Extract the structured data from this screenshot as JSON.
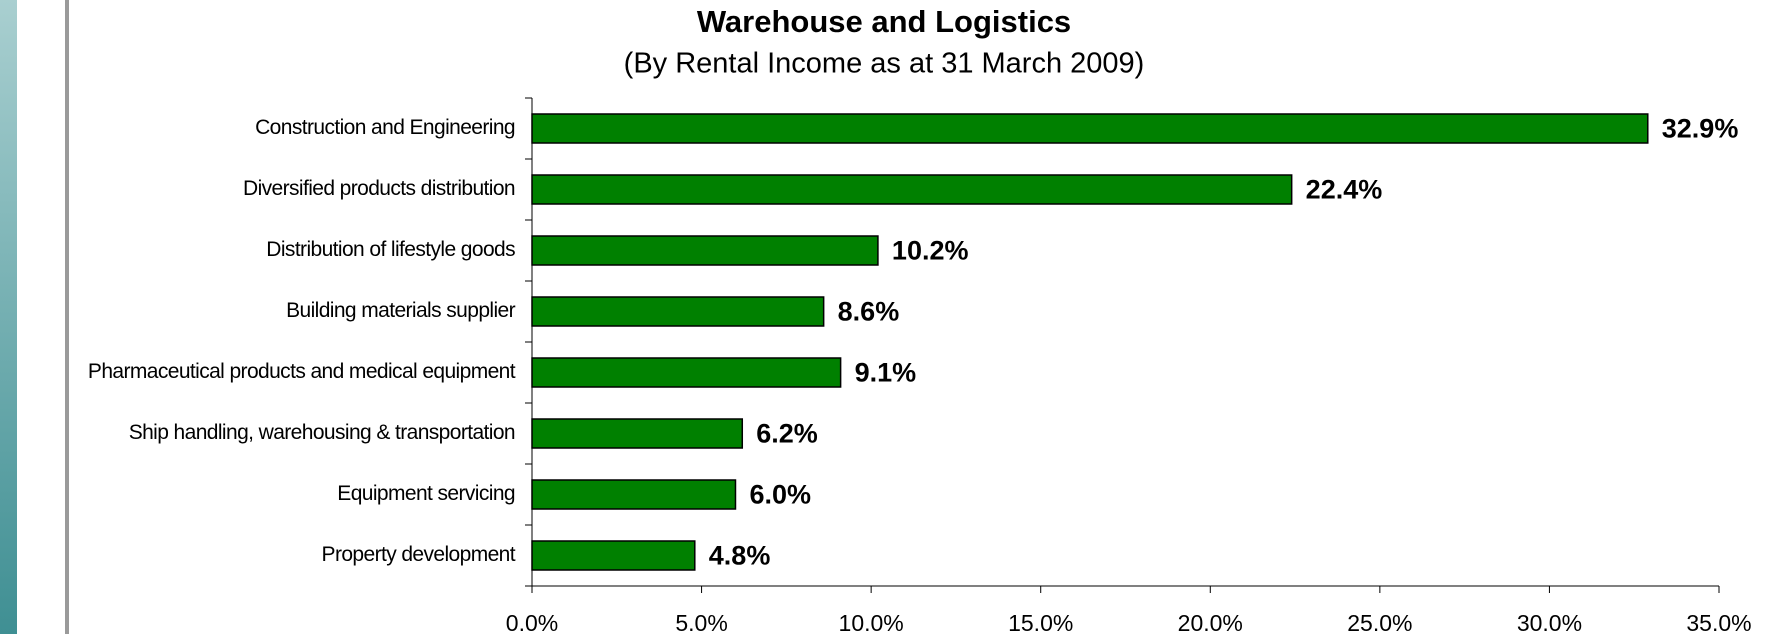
{
  "chart_data": {
    "type": "bar",
    "orientation": "horizontal",
    "title": "Warehouse and Logistics",
    "subtitle": "(By Rental Income as at 31 March 2009)",
    "categories": [
      "Construction and Engineering",
      "Diversified products distribution",
      "Distribution of lifestyle goods",
      "Building materials supplier",
      "Pharmaceutical products and medical equipment",
      "Ship handling, warehousing & transportation",
      "Equipment servicing",
      "Property development"
    ],
    "values": [
      32.9,
      22.4,
      10.2,
      8.6,
      9.1,
      6.2,
      6.0,
      4.8
    ],
    "value_labels": [
      "32.9%",
      "22.4%",
      "10.2%",
      "8.6%",
      "9.1%",
      "6.2%",
      "6.0%",
      "4.8%"
    ],
    "color": "#008000",
    "xlim": [
      0,
      35
    ],
    "xticks": [
      {
        "value": 0,
        "label": "0.0%"
      },
      {
        "value": 5,
        "label": "5.0%"
      },
      {
        "value": 10,
        "label": "10.0%"
      },
      {
        "value": 15,
        "label": "15.0%"
      },
      {
        "value": 20,
        "label": "20.0%"
      },
      {
        "value": 25,
        "label": "25.0%"
      },
      {
        "value": 30,
        "label": "30.0%"
      },
      {
        "value": 35,
        "label": "35.0%"
      }
    ],
    "grid": false
  }
}
